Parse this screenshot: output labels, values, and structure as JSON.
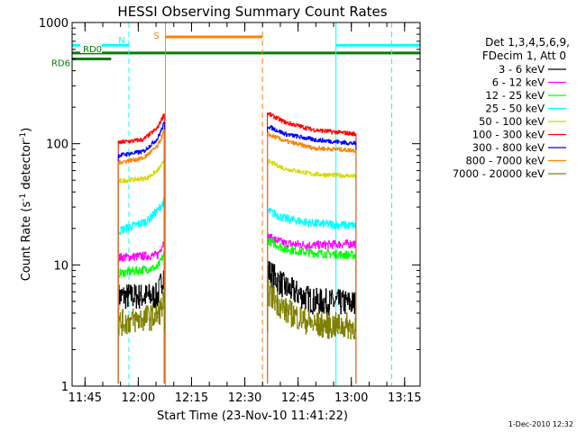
{
  "chart_data": {
    "type": "line",
    "title": "HESSI Observing Summary Count Rates",
    "xlabel": "Start Time (23-Nov-10 11:41:22)",
    "ylabel_main": "Count Rate (s",
    "ylabel_sup1": "-1",
    "ylabel_mid": " detector",
    "ylabel_sup2": "-1",
    "ylabel_end": ")",
    "y_scale": "log",
    "ylim": [
      1,
      1000
    ],
    "xlim_minutes": [
      0,
      98
    ],
    "x_ticks": [
      {
        "label": "11:45",
        "m": 3.63
      },
      {
        "label": "12:00",
        "m": 18.63
      },
      {
        "label": "12:15",
        "m": 33.63
      },
      {
        "label": "12:30",
        "m": 48.63
      },
      {
        "label": "12:45",
        "m": 63.63
      },
      {
        "label": "13:00",
        "m": 78.63
      },
      {
        "label": "13:15",
        "m": 93.63
      }
    ],
    "y_ticks": [
      {
        "label": "1",
        "v": 1
      },
      {
        "label": "10",
        "v": 10
      },
      {
        "label": "100",
        "v": 100
      },
      {
        "label": "1000",
        "v": 1000
      }
    ],
    "legend": {
      "position": "right",
      "header1": "Det 1,3,4,5,6,9,",
      "header2": "FDecim 1, Att 0",
      "entries": [
        {
          "label": "3 - 6 keV",
          "color": "#000000"
        },
        {
          "label": "6 - 12 keV",
          "color": "#ff00ff"
        },
        {
          "label": "12 - 25 keV",
          "color": "#00ff00"
        },
        {
          "label": "25 - 50 keV",
          "color": "#00ffff"
        },
        {
          "label": "50 - 100 keV",
          "color": "#d8d800"
        },
        {
          "label": "100 - 300 keV",
          "color": "#ff0000"
        },
        {
          "label": "300 - 800 keV",
          "color": "#0000ff"
        },
        {
          "label": "800 - 7000 keV",
          "color": "#ff8000"
        },
        {
          "label": "7000 - 20000 keV",
          "color": "#808000"
        }
      ]
    },
    "segments": [
      [
        13,
        26
      ],
      [
        55,
        80
      ]
    ],
    "series": [
      {
        "name": "3 - 6 keV",
        "color": "#000000",
        "values": [
          [
            13,
            5.5
          ],
          [
            24,
            5.5
          ],
          [
            26,
            9
          ],
          [
            55,
            9
          ],
          [
            60,
            6.5
          ],
          [
            68,
            5
          ],
          [
            80,
            4.8
          ]
        ]
      },
      {
        "name": "6 - 12 keV",
        "color": "#ff00ff",
        "values": [
          [
            13,
            11.5
          ],
          [
            24,
            12
          ],
          [
            26,
            16
          ],
          [
            55,
            17
          ],
          [
            60,
            15
          ],
          [
            68,
            14.5
          ],
          [
            80,
            15
          ]
        ]
      },
      {
        "name": "12 - 25 keV",
        "color": "#00ff00",
        "values": [
          [
            13,
            8.5
          ],
          [
            24,
            9.5
          ],
          [
            26,
            12.5
          ],
          [
            55,
            16
          ],
          [
            60,
            13.5
          ],
          [
            68,
            12.5
          ],
          [
            80,
            12
          ]
        ]
      },
      {
        "name": "25 - 50 keV",
        "color": "#00ffff",
        "values": [
          [
            13,
            19
          ],
          [
            21,
            23
          ],
          [
            24,
            28
          ],
          [
            26,
            34
          ],
          [
            55,
            28
          ],
          [
            60,
            24
          ],
          [
            68,
            22
          ],
          [
            80,
            21
          ]
        ]
      },
      {
        "name": "50 - 100 keV",
        "color": "#d8d800",
        "values": [
          [
            13,
            49
          ],
          [
            21,
            52
          ],
          [
            24,
            60
          ],
          [
            26,
            72
          ],
          [
            55,
            72
          ],
          [
            60,
            62
          ],
          [
            68,
            56
          ],
          [
            80,
            54
          ]
        ]
      },
      {
        "name": "100 - 300 keV",
        "color": "#ff0000",
        "values": [
          [
            13,
            102
          ],
          [
            20,
            108
          ],
          [
            24,
            135
          ],
          [
            26,
            180
          ],
          [
            55,
            178
          ],
          [
            60,
            150
          ],
          [
            68,
            130
          ],
          [
            80,
            120
          ]
        ]
      },
      {
        "name": "300 - 800 keV",
        "color": "#0000ff",
        "values": [
          [
            13,
            80
          ],
          [
            20,
            86
          ],
          [
            24,
            110
          ],
          [
            26,
            150
          ],
          [
            55,
            140
          ],
          [
            60,
            120
          ],
          [
            68,
            108
          ],
          [
            80,
            100
          ]
        ]
      },
      {
        "name": "800 - 7000 keV",
        "color": "#ff8000",
        "values": [
          [
            13,
            70
          ],
          [
            20,
            76
          ],
          [
            24,
            95
          ],
          [
            26,
            130
          ],
          [
            55,
            120
          ],
          [
            60,
            105
          ],
          [
            68,
            92
          ],
          [
            80,
            88
          ]
        ]
      },
      {
        "name": "7000 - 20000 keV",
        "color": "#808000",
        "values": [
          [
            13,
            3.3
          ],
          [
            24,
            3.8
          ],
          [
            26,
            5
          ],
          [
            55,
            6
          ],
          [
            60,
            4.2
          ],
          [
            68,
            3.2
          ],
          [
            80,
            3.1
          ]
        ]
      }
    ],
    "vlines": [
      {
        "m": 0,
        "color": "#00ffff",
        "style": "solid"
      },
      {
        "m": 16,
        "color": "#00ffff",
        "style": "dashed"
      },
      {
        "m": 26.3,
        "color": "#ff8000",
        "style": "solid"
      },
      {
        "m": 53.6,
        "color": "#ff8000",
        "style": "dashed"
      },
      {
        "m": 74.3,
        "color": "#00ffff",
        "style": "solid"
      },
      {
        "m": 90,
        "color": "#00ffff",
        "style": "dashed"
      }
    ],
    "flag_bars": [
      {
        "label": "N",
        "color": "#00ffff",
        "v": 650,
        "ranges": [
          [
            0,
            16
          ],
          [
            74.3,
            98
          ]
        ]
      },
      {
        "label": "S",
        "color": "#ff8000",
        "v": 760,
        "ranges": [
          [
            26.3,
            53.6
          ]
        ]
      },
      {
        "label": "RD0",
        "color": "#008000",
        "v": 560,
        "ranges": [
          [
            -3,
            98
          ]
        ]
      },
      {
        "label": "RD6",
        "color": "#008000",
        "v": 500,
        "ranges": [
          [
            -3,
            11
          ]
        ]
      }
    ],
    "grid": false
  },
  "footer": {
    "date": "1-Dec-2010 12:32"
  }
}
